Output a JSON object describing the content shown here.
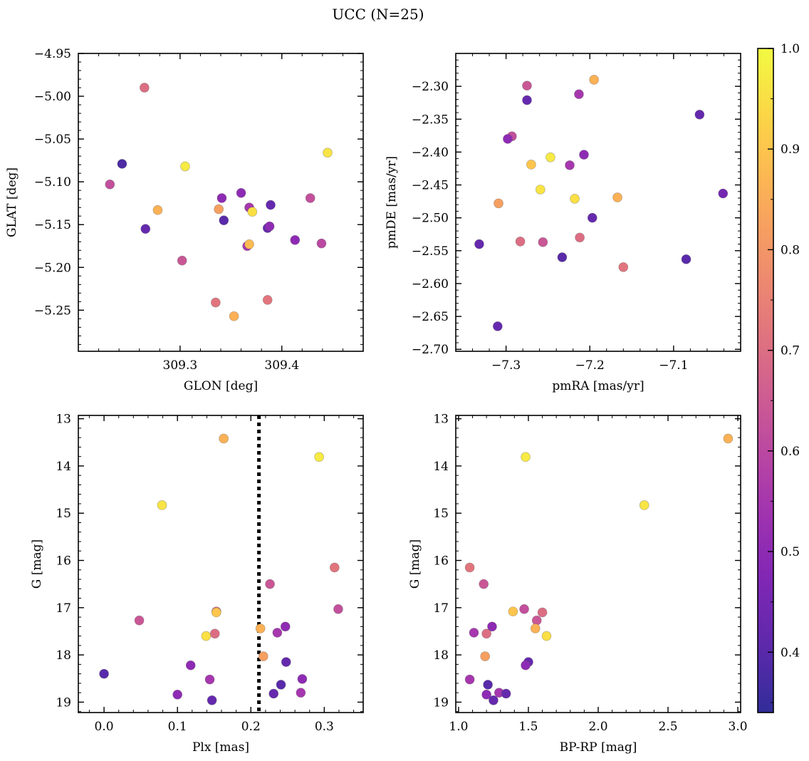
{
  "title": "UCC (N=25)",
  "colorbar": {
    "min": 0.34,
    "max": 1.0,
    "ticks": [
      0.4,
      0.5,
      0.6,
      0.7,
      0.8,
      0.9,
      1.0
    ],
    "tick_labels": [
      "0.4",
      "0.5",
      "0.6",
      "0.7",
      "0.8",
      "0.9",
      "1.0"
    ],
    "colormap": "plasma"
  },
  "chart_data": [
    {
      "type": "scatter",
      "xlabel": "GLON [deg]",
      "ylabel": "GLAT [deg]",
      "xlim": [
        309.2,
        309.48
      ],
      "ylim": [
        -5.298,
        -4.95
      ],
      "xticks": [
        309.3,
        309.4
      ],
      "xtick_labels": [
        "309.3",
        "309.4"
      ],
      "yticks": [
        -5.25,
        -5.2,
        -5.15,
        -5.1,
        -5.05,
        -5.0,
        -4.95
      ],
      "ytick_labels": [
        "−5.25",
        "−5.20",
        "−5.15",
        "−5.10",
        "−5.05",
        "−5.00",
        "−4.95"
      ],
      "points": [
        {
          "x": 309.265,
          "y": -4.99,
          "c": 0.7
        },
        {
          "x": 309.445,
          "y": -5.066,
          "c": 0.96
        },
        {
          "x": 309.243,
          "y": -5.079,
          "c": 0.38
        },
        {
          "x": 309.305,
          "y": -5.082,
          "c": 0.97
        },
        {
          "x": 309.231,
          "y": -5.103,
          "c": 0.62
        },
        {
          "x": 309.341,
          "y": -5.119,
          "c": 0.5
        },
        {
          "x": 309.36,
          "y": -5.113,
          "c": 0.5
        },
        {
          "x": 309.428,
          "y": -5.119,
          "c": 0.62
        },
        {
          "x": 309.389,
          "y": -5.127,
          "c": 0.42
        },
        {
          "x": 309.278,
          "y": -5.133,
          "c": 0.86
        },
        {
          "x": 309.338,
          "y": -5.132,
          "c": 0.82
        },
        {
          "x": 309.368,
          "y": -5.13,
          "c": 0.55
        },
        {
          "x": 309.371,
          "y": -5.135,
          "c": 0.95
        },
        {
          "x": 309.343,
          "y": -5.145,
          "c": 0.4
        },
        {
          "x": 309.266,
          "y": -5.155,
          "c": 0.42
        },
        {
          "x": 309.386,
          "y": -5.154,
          "c": 0.42
        },
        {
          "x": 309.388,
          "y": -5.152,
          "c": 0.5
        },
        {
          "x": 309.413,
          "y": -5.168,
          "c": 0.5
        },
        {
          "x": 309.439,
          "y": -5.172,
          "c": 0.6
        },
        {
          "x": 309.366,
          "y": -5.175,
          "c": 0.55
        },
        {
          "x": 309.368,
          "y": -5.173,
          "c": 0.88
        },
        {
          "x": 309.302,
          "y": -5.192,
          "c": 0.64
        },
        {
          "x": 309.335,
          "y": -5.241,
          "c": 0.72
        },
        {
          "x": 309.386,
          "y": -5.238,
          "c": 0.72
        },
        {
          "x": 309.353,
          "y": -5.257,
          "c": 0.86
        }
      ]
    },
    {
      "type": "scatter",
      "xlabel": "pmRA [mas/yr]",
      "ylabel": "pmDE [mas/yr]",
      "xlim": [
        -7.36,
        -7.02
      ],
      "ylim": [
        -2.703,
        -2.25
      ],
      "xticks": [
        -7.3,
        -7.2,
        -7.1
      ],
      "xtick_labels": [
        "−7.3",
        "−7.2",
        "−7.1"
      ],
      "yticks": [
        -2.7,
        -2.65,
        -2.6,
        -2.55,
        -2.5,
        -2.45,
        -2.4,
        -2.35,
        -2.3
      ],
      "ytick_labels": [
        "−2.70",
        "−2.65",
        "−2.60",
        "−2.55",
        "−2.50",
        "−2.45",
        "−2.40",
        "−2.35",
        "−2.30"
      ],
      "points": [
        {
          "x": -7.195,
          "y": -2.29,
          "c": 0.86
        },
        {
          "x": -7.275,
          "y": -2.299,
          "c": 0.64
        },
        {
          "x": -7.213,
          "y": -2.312,
          "c": 0.55
        },
        {
          "x": -7.275,
          "y": -2.321,
          "c": 0.42
        },
        {
          "x": -7.069,
          "y": -2.343,
          "c": 0.42
        },
        {
          "x": -7.293,
          "y": -2.376,
          "c": 0.62
        },
        {
          "x": -7.298,
          "y": -2.38,
          "c": 0.5
        },
        {
          "x": -7.247,
          "y": -2.408,
          "c": 0.97
        },
        {
          "x": -7.207,
          "y": -2.404,
          "c": 0.5
        },
        {
          "x": -7.27,
          "y": -2.419,
          "c": 0.9
        },
        {
          "x": -7.224,
          "y": -2.42,
          "c": 0.55
        },
        {
          "x": -7.259,
          "y": -2.457,
          "c": 0.96
        },
        {
          "x": -7.041,
          "y": -2.463,
          "c": 0.45
        },
        {
          "x": -7.218,
          "y": -2.471,
          "c": 0.95
        },
        {
          "x": -7.167,
          "y": -2.469,
          "c": 0.86
        },
        {
          "x": -7.309,
          "y": -2.478,
          "c": 0.82
        },
        {
          "x": -7.197,
          "y": -2.5,
          "c": 0.42
        },
        {
          "x": -7.212,
          "y": -2.53,
          "c": 0.7
        },
        {
          "x": -7.283,
          "y": -2.536,
          "c": 0.7
        },
        {
          "x": -7.256,
          "y": -2.537,
          "c": 0.64
        },
        {
          "x": -7.332,
          "y": -2.54,
          "c": 0.42
        },
        {
          "x": -7.233,
          "y": -2.56,
          "c": 0.4
        },
        {
          "x": -7.085,
          "y": -2.563,
          "c": 0.4
        },
        {
          "x": -7.16,
          "y": -2.575,
          "c": 0.72
        },
        {
          "x": -7.31,
          "y": -2.665,
          "c": 0.42
        }
      ]
    },
    {
      "type": "scatter",
      "xlabel": "Plx [mas]",
      "ylabel": "G [mag]",
      "xlim": [
        -0.035,
        0.353
      ],
      "ylim": [
        19.22,
        12.93
      ],
      "xticks": [
        0.0,
        0.1,
        0.2,
        0.3
      ],
      "xtick_labels": [
        "0.0",
        "0.1",
        "0.2",
        "0.3"
      ],
      "yticks": [
        13,
        14,
        15,
        16,
        17,
        18,
        19
      ],
      "ytick_labels": [
        "13",
        "14",
        "15",
        "16",
        "17",
        "18",
        "19"
      ],
      "vline": {
        "x": 0.211,
        "style": "dotted",
        "color": "#000000"
      },
      "points": [
        {
          "x": 0.163,
          "y": 13.42,
          "c": 0.86
        },
        {
          "x": 0.293,
          "y": 13.81,
          "c": 0.97
        },
        {
          "x": 0.079,
          "y": 14.83,
          "c": 0.96
        },
        {
          "x": 0.314,
          "y": 16.15,
          "c": 0.72
        },
        {
          "x": 0.226,
          "y": 16.5,
          "c": 0.64
        },
        {
          "x": 0.319,
          "y": 17.03,
          "c": 0.62
        },
        {
          "x": 0.153,
          "y": 17.08,
          "c": 0.7
        },
        {
          "x": 0.153,
          "y": 17.1,
          "c": 0.9
        },
        {
          "x": 0.048,
          "y": 17.27,
          "c": 0.64
        },
        {
          "x": 0.247,
          "y": 17.4,
          "c": 0.5
        },
        {
          "x": 0.213,
          "y": 17.44,
          "c": 0.86
        },
        {
          "x": 0.236,
          "y": 17.53,
          "c": 0.55
        },
        {
          "x": 0.151,
          "y": 17.55,
          "c": 0.7
        },
        {
          "x": 0.139,
          "y": 17.6,
          "c": 0.95
        },
        {
          "x": 0.217,
          "y": 18.03,
          "c": 0.82
        },
        {
          "x": 0.248,
          "y": 18.15,
          "c": 0.42
        },
        {
          "x": 0.118,
          "y": 18.22,
          "c": 0.5
        },
        {
          "x": 0.0,
          "y": 18.4,
          "c": 0.4
        },
        {
          "x": 0.144,
          "y": 18.52,
          "c": 0.55
        },
        {
          "x": 0.27,
          "y": 18.51,
          "c": 0.5
        },
        {
          "x": 0.241,
          "y": 18.63,
          "c": 0.4
        },
        {
          "x": 0.1,
          "y": 18.84,
          "c": 0.5
        },
        {
          "x": 0.231,
          "y": 18.82,
          "c": 0.42
        },
        {
          "x": 0.268,
          "y": 18.8,
          "c": 0.55
        },
        {
          "x": 0.147,
          "y": 18.96,
          "c": 0.42
        }
      ]
    },
    {
      "type": "scatter",
      "xlabel": "BP-RP [mag]",
      "ylabel": "G [mag]",
      "xlim": [
        0.98,
        3.02
      ],
      "ylim": [
        19.22,
        12.93
      ],
      "xticks": [
        1.0,
        1.5,
        2.0,
        2.5,
        3.0
      ],
      "xtick_labels": [
        "1.0",
        "1.5",
        "2.0",
        "2.5",
        "3.0"
      ],
      "yticks": [
        13,
        14,
        15,
        16,
        17,
        18,
        19
      ],
      "ytick_labels": [
        "13",
        "14",
        "15",
        "16",
        "17",
        "18",
        "19"
      ],
      "points": [
        {
          "x": 2.93,
          "y": 13.42,
          "c": 0.86
        },
        {
          "x": 1.48,
          "y": 13.81,
          "c": 0.97
        },
        {
          "x": 2.33,
          "y": 14.83,
          "c": 0.96
        },
        {
          "x": 1.08,
          "y": 16.15,
          "c": 0.72
        },
        {
          "x": 1.18,
          "y": 16.5,
          "c": 0.64
        },
        {
          "x": 1.47,
          "y": 17.03,
          "c": 0.62
        },
        {
          "x": 1.6,
          "y": 17.1,
          "c": 0.7
        },
        {
          "x": 1.39,
          "y": 17.08,
          "c": 0.9
        },
        {
          "x": 1.56,
          "y": 17.27,
          "c": 0.64
        },
        {
          "x": 1.24,
          "y": 17.4,
          "c": 0.5
        },
        {
          "x": 1.55,
          "y": 17.44,
          "c": 0.86
        },
        {
          "x": 1.11,
          "y": 17.53,
          "c": 0.55
        },
        {
          "x": 1.2,
          "y": 17.55,
          "c": 0.7
        },
        {
          "x": 1.63,
          "y": 17.6,
          "c": 0.95
        },
        {
          "x": 1.19,
          "y": 18.03,
          "c": 0.82
        },
        {
          "x": 1.5,
          "y": 18.15,
          "c": 0.42
        },
        {
          "x": 1.48,
          "y": 18.22,
          "c": 0.5
        },
        {
          "x": 1.08,
          "y": 18.52,
          "c": 0.55
        },
        {
          "x": 1.21,
          "y": 18.63,
          "c": 0.4
        },
        {
          "x": 1.2,
          "y": 18.84,
          "c": 0.5
        },
        {
          "x": 1.29,
          "y": 18.8,
          "c": 0.55
        },
        {
          "x": 1.34,
          "y": 18.82,
          "c": 0.42
        },
        {
          "x": 1.25,
          "y": 18.96,
          "c": 0.42
        }
      ]
    }
  ]
}
